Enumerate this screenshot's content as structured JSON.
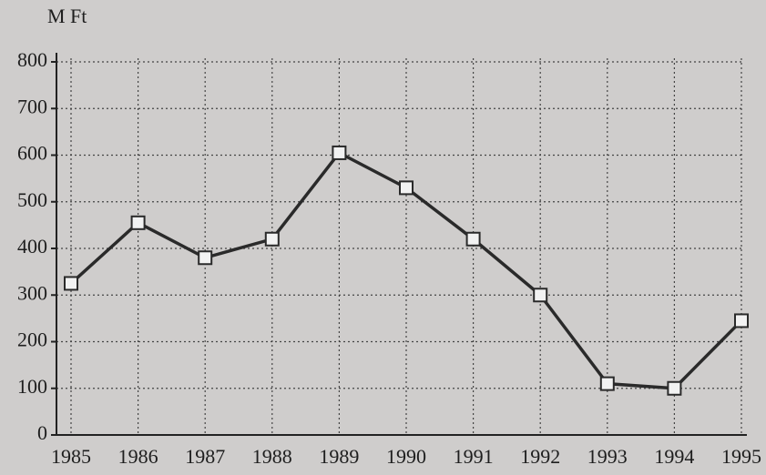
{
  "chart_data": {
    "type": "line",
    "y_label": "M Ft",
    "categories": [
      "1985",
      "1986",
      "1987",
      "1988",
      "1989",
      "1990",
      "1991",
      "1992",
      "1993",
      "1994",
      "1995"
    ],
    "series": [
      {
        "name": null,
        "color": "#2a2a2a",
        "values": [
          325,
          455,
          380,
          420,
          605,
          530,
          420,
          300,
          110,
          100,
          245
        ]
      }
    ],
    "ylim": [
      0,
      800
    ],
    "yticks": [
      0,
      100,
      200,
      300,
      400,
      500,
      600,
      700,
      800
    ],
    "grid": true
  }
}
